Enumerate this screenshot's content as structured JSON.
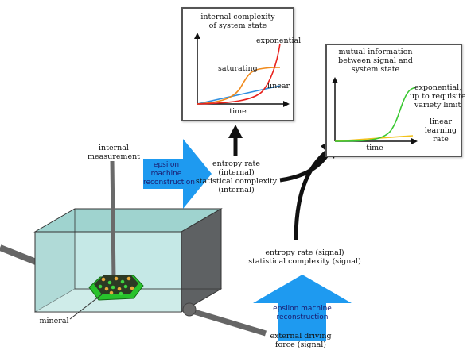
{
  "chart_internal": {
    "title_line1": "internal complexity",
    "title_line2": "of system state",
    "xlabel": "time",
    "curve_exponential": "exponential",
    "curve_saturating": "saturating",
    "curve_linear": "linear",
    "colors": {
      "exponential": "#e8231e",
      "saturating": "#f08a1c",
      "linear": "#2f8fe0"
    }
  },
  "chart_mutual": {
    "title_line1": "mutual information",
    "title_line2": "between signal and",
    "title_line3": "system state",
    "xlabel": "time",
    "curve_exponential_line1": "exponential,",
    "curve_exponential_line2": "up to requisite",
    "curve_exponential_line3": "variety limit",
    "curve_linear_line1": "linear",
    "curve_linear_line2": "learning",
    "curve_linear_line3": "rate",
    "colors": {
      "exponential": "#3ac832",
      "linear": "#f2c21b"
    }
  },
  "internal_measurement": {
    "line1": "internal",
    "line2": "measurement"
  },
  "epsilon_internal": {
    "line1": "epsilon",
    "line2": "machine",
    "line3": "reconstruction"
  },
  "entropy_internal": {
    "line1": "entropy rate",
    "line2": "(internal)",
    "line3": "statistical complexity",
    "line4": "(internal)"
  },
  "entropy_signal": {
    "line1": "entropy rate (signal)",
    "line2": "statistical complexity (signal)"
  },
  "epsilon_signal": {
    "line1": "epsilon machine",
    "line2": "reconstruction"
  },
  "external_force": {
    "line1": "external driving",
    "line2": "force (signal)"
  },
  "mineral_label": "mineral",
  "colors": {
    "arrow_blue": "#1e9af0",
    "tank_front": "#bfe6e3",
    "tank_side": "#2f6f6a",
    "mineral_green": "#27c22c"
  }
}
